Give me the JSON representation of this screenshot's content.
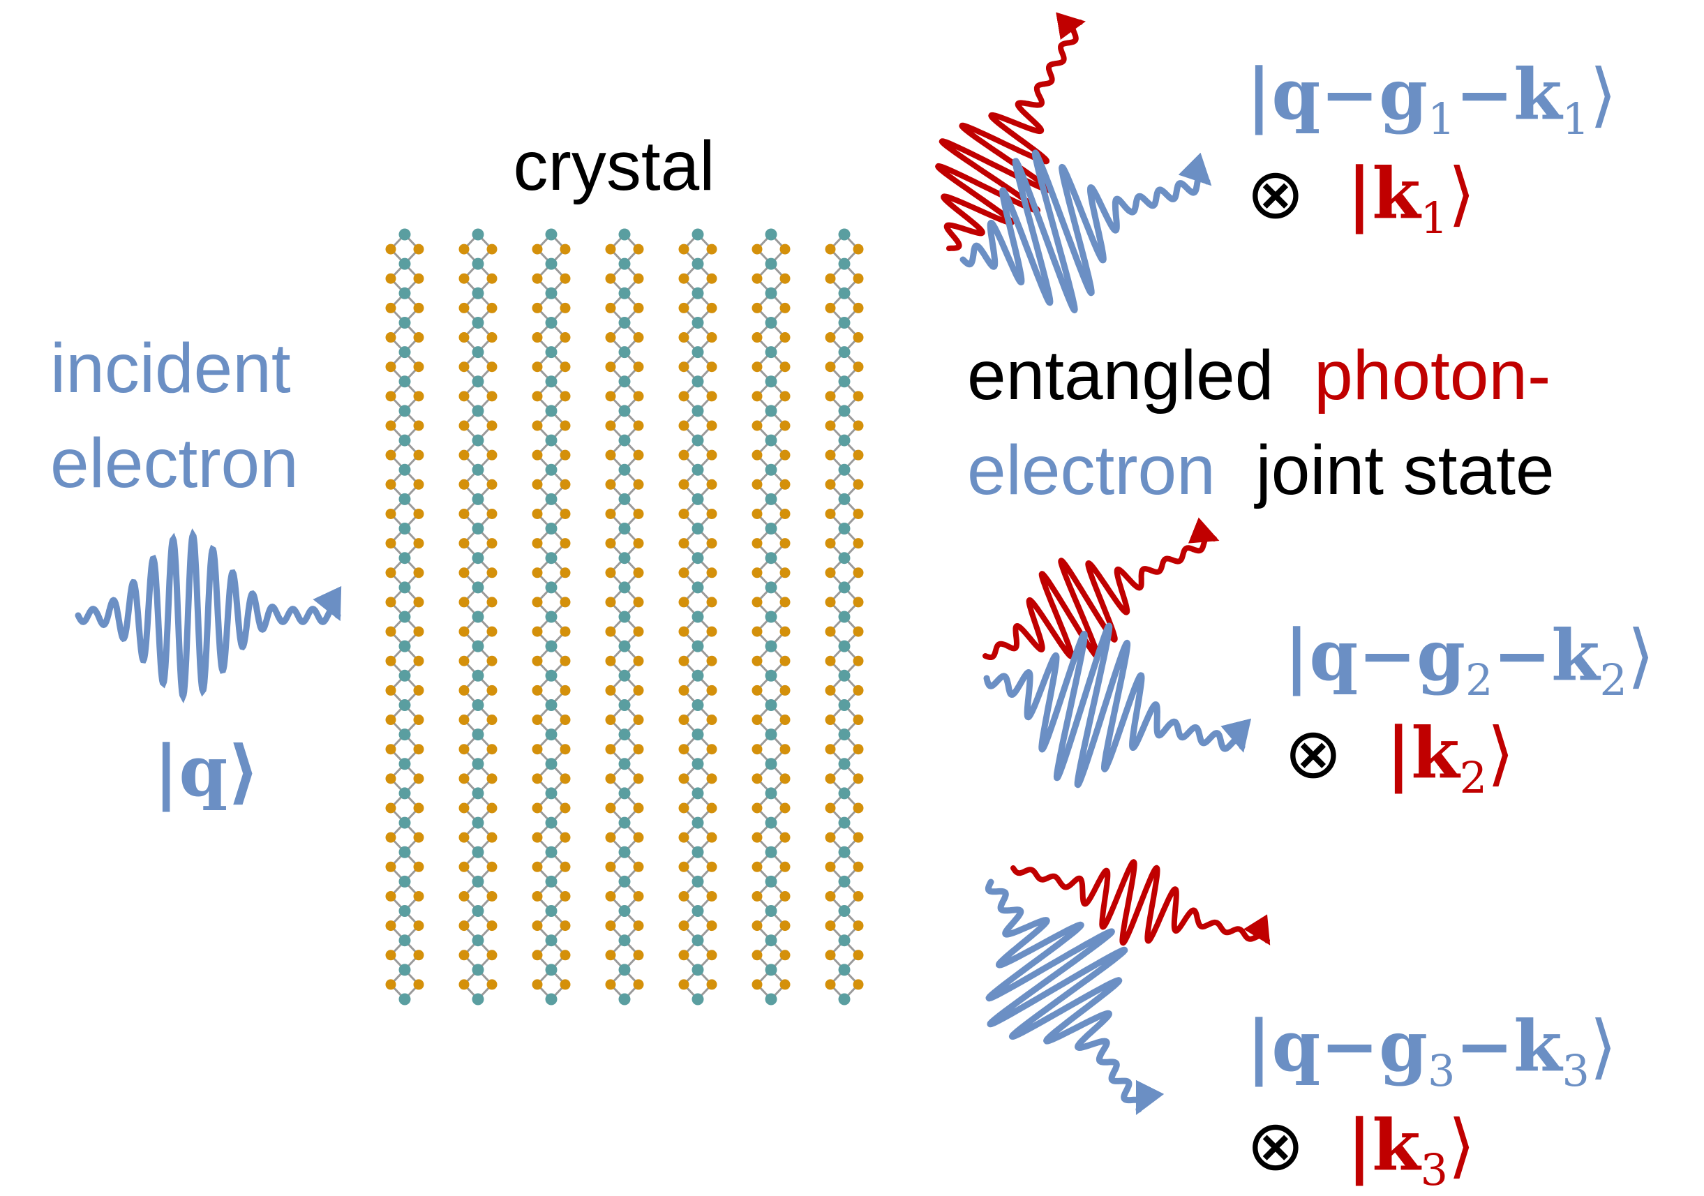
{
  "colors": {
    "electron": "#6B8FC4",
    "photon": "#C00000",
    "text": "#000000",
    "atom_metal": "#5A9EA0",
    "atom_chalcogen": "#D4900A",
    "bond": "#9A9A9A"
  },
  "labels": {
    "crystal": "crystal",
    "incident_line1": "incident",
    "incident_line2": "electron",
    "incident_ket": "|q⟩",
    "entangled_line1_a": "entangled",
    "entangled_line1_b": "photon-",
    "entangled_line2_a": "electron",
    "entangled_line2_b": "joint state"
  },
  "outputs": [
    {
      "otimes": "⊗",
      "electron": {
        "pre": "|q−g",
        "sub1": "1",
        "mid": "−k",
        "sub2": "1",
        "post": "⟩"
      },
      "photon": {
        "pre": "|k",
        "sub": "1",
        "post": "⟩"
      }
    },
    {
      "otimes": "⊗",
      "electron": {
        "pre": "|q−g",
        "sub1": "2",
        "mid": "−k",
        "sub2": "2",
        "post": "⟩"
      },
      "photon": {
        "pre": "|k",
        "sub": "2",
        "post": "⟩"
      }
    },
    {
      "otimes": "⊗",
      "electron": {
        "pre": "|q−g",
        "sub1": "3",
        "mid": "−k",
        "sub2": "3",
        "post": "⟩"
      },
      "photon": {
        "pre": "|k",
        "sub": "3",
        "post": "⟩"
      }
    }
  ],
  "crystal_lattice": {
    "columns": 7,
    "unit_cells": 26
  }
}
